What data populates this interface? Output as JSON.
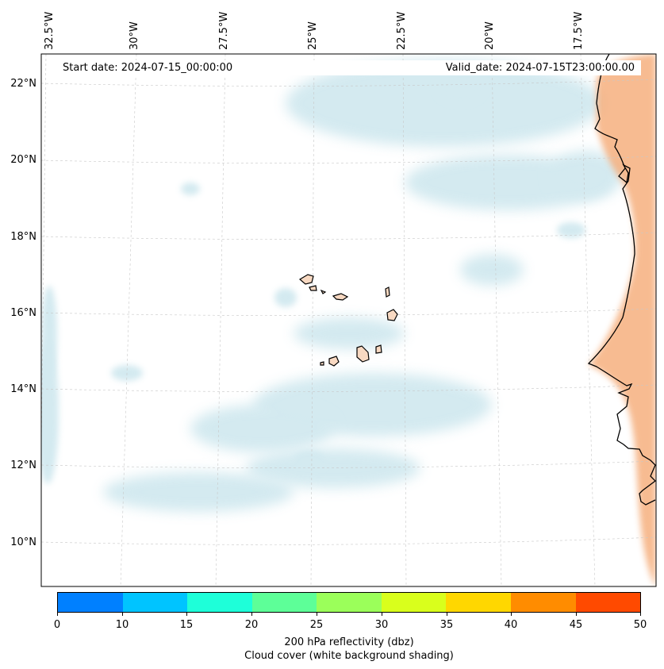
{
  "header": {
    "start_date": "Start date: 2024-07-15_00:00:00",
    "valid_date": "Valid_date: 2024-07-15T23:00:00.00"
  },
  "axes": {
    "longitude_labels": [
      "32.5°W",
      "30°W",
      "27.5°W",
      "25°W",
      "22.5°W",
      "20°W",
      "17.5°W"
    ],
    "latitude_labels": [
      "22°N",
      "20°N",
      "18°N",
      "16°N",
      "14°N",
      "12°N",
      "10°N"
    ]
  },
  "colorbar": {
    "colors": [
      "#0080ff",
      "#00c4ff",
      "#1effd9",
      "#5dff98",
      "#9bff5a",
      "#d9ff1c",
      "#ffd700",
      "#ff8c00",
      "#ff4a00"
    ],
    "ticks": [
      "0",
      "10",
      "15",
      "20",
      "25",
      "30",
      "35",
      "40",
      "45",
      "50"
    ],
    "label_line1": "200 hPa reflectivity (dbz)",
    "label_line2": "Cloud cover (white background shading)"
  },
  "map_colors": {
    "cloud": "#9fd0de",
    "land_heat": "#f4a46c",
    "island_fill": "#f8d9c2",
    "coastline": "#000000",
    "gridline": "#c8c8c8"
  }
}
